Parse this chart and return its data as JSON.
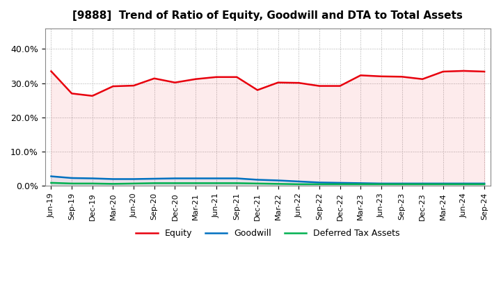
{
  "title": "[9888]  Trend of Ratio of Equity, Goodwill and DTA to Total Assets",
  "x_labels": [
    "Jun-19",
    "Sep-19",
    "Dec-19",
    "Mar-20",
    "Jun-20",
    "Sep-20",
    "Dec-20",
    "Mar-21",
    "Jun-21",
    "Sep-21",
    "Dec-21",
    "Mar-22",
    "Jun-22",
    "Sep-22",
    "Dec-22",
    "Mar-23",
    "Jun-23",
    "Sep-23",
    "Dec-23",
    "Mar-24",
    "Jun-24",
    "Sep-24"
  ],
  "equity": [
    0.335,
    0.27,
    0.263,
    0.291,
    0.293,
    0.314,
    0.302,
    0.312,
    0.318,
    0.318,
    0.28,
    0.302,
    0.301,
    0.292,
    0.292,
    0.323,
    0.32,
    0.319,
    0.312,
    0.334,
    0.336,
    0.334
  ],
  "goodwill": [
    0.028,
    0.023,
    0.022,
    0.02,
    0.02,
    0.021,
    0.022,
    0.022,
    0.022,
    0.022,
    0.018,
    0.016,
    0.013,
    0.01,
    0.009,
    0.008,
    0.007,
    0.007,
    0.007,
    0.007,
    0.007,
    0.007
  ],
  "dta": [
    0.009,
    0.007,
    0.007,
    0.006,
    0.007,
    0.008,
    0.008,
    0.008,
    0.008,
    0.008,
    0.007,
    0.006,
    0.005,
    0.005,
    0.005,
    0.005,
    0.005,
    0.005,
    0.005,
    0.005,
    0.005,
    0.005
  ],
  "equity_color": "#e8000d",
  "goodwill_color": "#0070c0",
  "dta_color": "#00b050",
  "ylim": [
    0.0,
    0.46
  ],
  "yticks": [
    0.0,
    0.1,
    0.2,
    0.3,
    0.4
  ],
  "background_color": "#ffffff",
  "grid_color": "#aaaaaa"
}
